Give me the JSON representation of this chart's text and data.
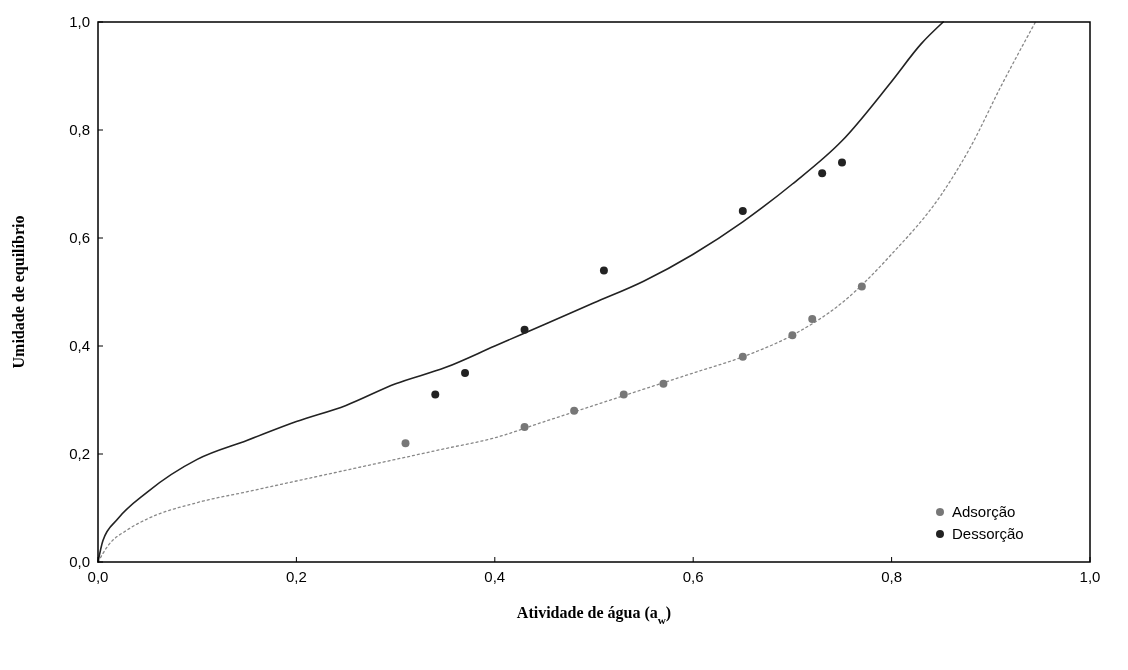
{
  "chart_data": {
    "type": "scatter",
    "xlabel": "Atividade de água (a$_{w}$)",
    "ylabel": "Umidade de equilíbrio",
    "xlim": [
      0,
      1
    ],
    "ylim": [
      0,
      1
    ],
    "xticks": [
      {
        "value": 0,
        "label": "0,0"
      },
      {
        "value": 0.2,
        "label": "0,2"
      },
      {
        "value": 0.4,
        "label": "0,4"
      },
      {
        "value": 0.6,
        "label": "0,6"
      },
      {
        "value": 0.8,
        "label": "0,8"
      },
      {
        "value": 1,
        "label": "1,0"
      }
    ],
    "yticks": [
      {
        "value": 0,
        "label": "0,0"
      },
      {
        "value": 0.2,
        "label": "0,2"
      },
      {
        "value": 0.4,
        "label": "0,4"
      },
      {
        "value": 0.6,
        "label": "0,6"
      },
      {
        "value": 0.8,
        "label": "0,8"
      },
      {
        "value": 1,
        "label": "1,0"
      }
    ],
    "legend": "bottom right",
    "series": [
      {
        "type": "line",
        "color": "#222222",
        "line_style": "solid",
        "x": [
          0,
          0.005,
          0.02,
          0.05,
          0.1,
          0.15,
          0.2,
          0.25,
          0.3,
          0.35,
          0.4,
          0.45,
          0.5,
          0.55,
          0.6,
          0.65,
          0.7,
          0.75,
          0.8,
          0.83,
          0.852
        ],
        "values": [
          0,
          0.04,
          0.08,
          0.13,
          0.19,
          0.225,
          0.26,
          0.29,
          0.33,
          0.36,
          0.4,
          0.44,
          0.48,
          0.52,
          0.57,
          0.63,
          0.7,
          0.78,
          0.89,
          0.96,
          1.0
        ]
      },
      {
        "type": "line",
        "color": "#888888",
        "line_style": "dotted",
        "x": [
          0,
          0.01,
          0.03,
          0.05,
          0.1,
          0.15,
          0.2,
          0.25,
          0.3,
          0.35,
          0.4,
          0.45,
          0.5,
          0.55,
          0.6,
          0.65,
          0.7,
          0.75,
          0.8,
          0.85,
          0.88,
          0.91,
          0.945
        ],
        "values": [
          0,
          0.03,
          0.06,
          0.08,
          0.11,
          0.13,
          0.15,
          0.17,
          0.19,
          0.21,
          0.23,
          0.26,
          0.29,
          0.32,
          0.35,
          0.38,
          0.42,
          0.48,
          0.57,
          0.68,
          0.77,
          0.88,
          1.0
        ]
      },
      {
        "name": "Adsorção",
        "marker": "circle",
        "color": "#777777",
        "x": [
          0.31,
          0.43,
          0.48,
          0.53,
          0.57,
          0.65,
          0.7,
          0.72,
          0.77
        ],
        "values": [
          0.22,
          0.25,
          0.28,
          0.31,
          0.33,
          0.38,
          0.42,
          0.45,
          0.51
        ]
      },
      {
        "name": "Dessorção",
        "marker": "circle",
        "color": "#222222",
        "x": [
          0.34,
          0.37,
          0.43,
          0.51,
          0.65,
          0.73,
          0.75
        ],
        "values": [
          0.31,
          0.35,
          0.43,
          0.54,
          0.65,
          0.72,
          0.74
        ]
      }
    ]
  }
}
